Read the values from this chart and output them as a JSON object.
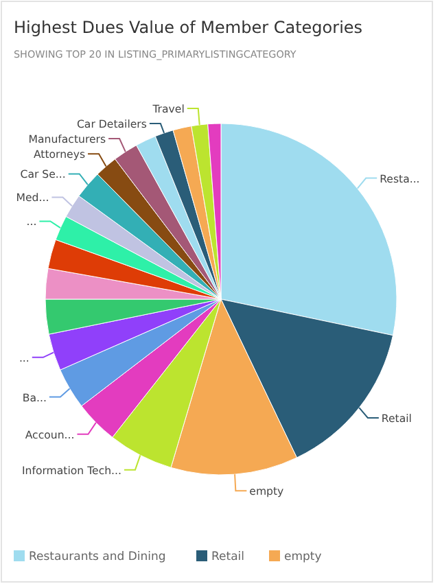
{
  "chart_data": {
    "type": "pie",
    "title": "Highest Dues Value of Member Categories",
    "subtitle": "SHOWING TOP 20 IN LISTING_PRIMARYLISTINGCATEGORY",
    "categories": [
      "Restaurants and Dining",
      "Retail",
      "empty",
      "Information Tech...",
      "Accoun...",
      "Ba...",
      "...",
      null,
      null,
      null,
      "...",
      "Med...",
      "Car Se...",
      "Attorneys",
      "Manufacturers",
      null,
      "Car Detailers",
      null,
      "Travel",
      null
    ],
    "values": [
      28.3,
      14.6,
      11.7,
      6.0,
      4.0,
      3.8,
      3.4,
      3.2,
      2.8,
      2.7,
      2.3,
      2.2,
      2.6,
      2.1,
      2.3,
      1.9,
      1.7,
      1.7,
      1.5,
      1.2
    ],
    "colors": [
      "#9fdcef",
      "#2a5d78",
      "#f5a953",
      "#bce42f",
      "#e33cbf",
      "#5f9be3",
      "#9040fa",
      "#34c96f",
      "#ec90c5",
      "#de3c06",
      "#2ef0a8",
      "#c0c3e2",
      "#33afb5",
      "#874b12",
      "#a45876",
      "#9fdcef",
      "#2a5d78",
      "#f5a953",
      "#bce42f",
      "#e33cbf"
    ],
    "legend": "bottom",
    "annotations": [
      {
        "text": "Resta...",
        "x": "Restaurants and Dining"
      }
    ]
  }
}
